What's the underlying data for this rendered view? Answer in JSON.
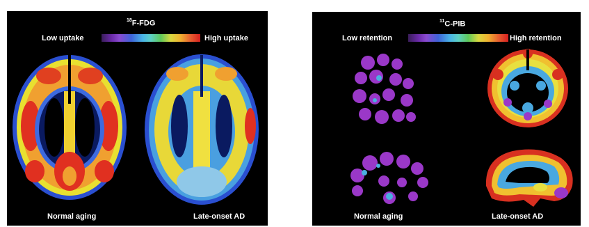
{
  "left_panel": {
    "tracer_sup": "18",
    "tracer_name": "F-FDG",
    "scale_low": "Low uptake",
    "scale_high": "High uptake",
    "caption_left": "Normal aging",
    "caption_right": "Late-onset AD"
  },
  "right_panel": {
    "tracer_sup": "11",
    "tracer_name": "C-PIB",
    "scale_low": "Low retention",
    "scale_high": "High retention",
    "caption_left": "Normal aging",
    "caption_right": "Late-onset AD"
  },
  "colors": {
    "background": "#000000",
    "low": "#6a2aa8",
    "mid": "#49b5e6",
    "high": "#d82020"
  }
}
